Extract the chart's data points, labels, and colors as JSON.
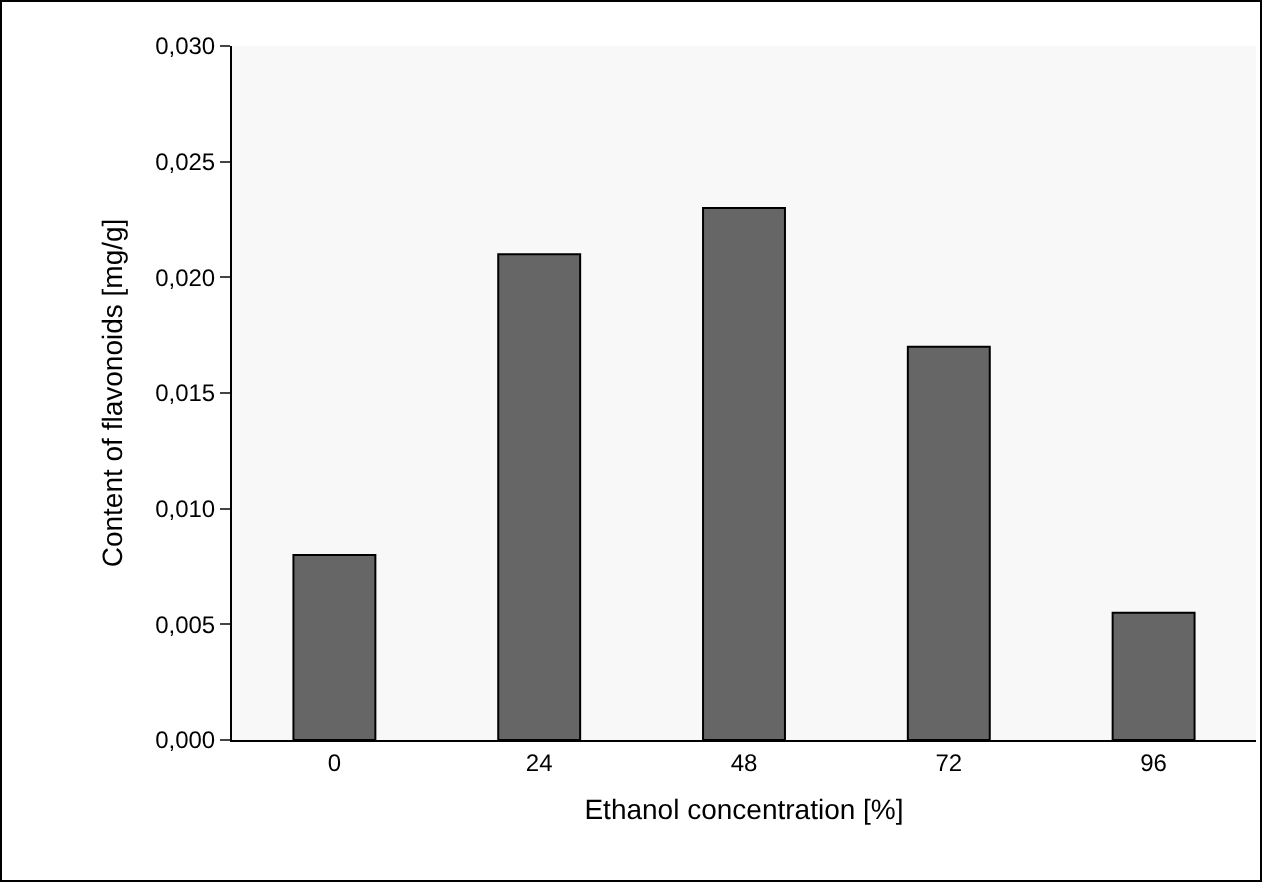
{
  "chart_data": {
    "type": "bar",
    "xlabel": "Ethanol concentration [%]",
    "ylabel": "Content of flavonoids [mg/g]",
    "categories": [
      "0",
      "24",
      "48",
      "72",
      "96"
    ],
    "values": [
      0.008,
      0.021,
      0.023,
      0.017,
      0.0055
    ],
    "color": "#666666",
    "ylim": [
      0,
      0.03
    ],
    "yticks": [
      {
        "value": 0,
        "label": "0,000"
      },
      {
        "value": 0.005,
        "label": "0,005"
      },
      {
        "value": 0.01,
        "label": "0,010"
      },
      {
        "value": 0.015,
        "label": "0,015"
      },
      {
        "value": 0.02,
        "label": "0,020"
      },
      {
        "value": 0.025,
        "label": "0,025"
      },
      {
        "value": 0.03,
        "label": "0,030"
      }
    ],
    "grid": false
  }
}
